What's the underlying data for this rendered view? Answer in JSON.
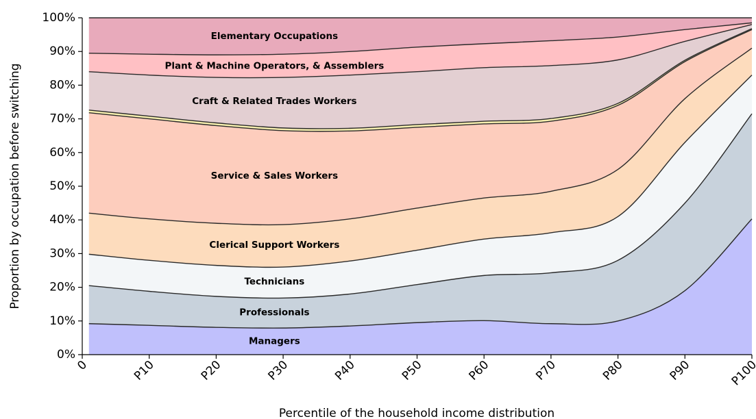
{
  "chart_data": {
    "type": "stackedarea",
    "xlabel": "Percentile of the household income distribution",
    "ylabel": "Proportion by occupation before switching",
    "x": [
      1,
      10,
      20,
      30,
      40,
      50,
      60,
      70,
      80,
      90,
      100
    ],
    "xlim": [
      0,
      100
    ],
    "xticks": [
      0,
      {
        "value": 10,
        "label": "P10"
      },
      {
        "value": 20,
        "label": "P20"
      },
      {
        "value": 30,
        "label": "P30"
      },
      {
        "value": 40,
        "label": "P40"
      },
      {
        "value": 50,
        "label": "P50"
      },
      {
        "value": 60,
        "label": "P60"
      },
      {
        "value": 70,
        "label": "P70"
      },
      {
        "value": 80,
        "label": "P80"
      },
      {
        "value": 90,
        "label": "P90"
      },
      {
        "value": 100,
        "label": "P100"
      }
    ],
    "ylim": [
      0,
      100
    ],
    "yticks": [
      {
        "value": 0,
        "label": "0%"
      },
      {
        "value": 10,
        "label": "10%"
      },
      {
        "value": 20,
        "label": "20%"
      },
      {
        "value": 30,
        "label": "30%"
      },
      {
        "value": 40,
        "label": "40%"
      },
      {
        "value": 50,
        "label": "50%"
      },
      {
        "value": 60,
        "label": "60%"
      },
      {
        "value": 70,
        "label": "70%"
      },
      {
        "value": 80,
        "label": "80%"
      },
      {
        "value": 90,
        "label": "90%"
      },
      {
        "value": 100,
        "label": "100%"
      }
    ],
    "series": [
      {
        "name": "Managers",
        "color": "#c0c0fc",
        "values": [
          9.2,
          8.7,
          8.1,
          7.9,
          8.5,
          9.5,
          10.1,
          9.2,
          10,
          19,
          40.3
        ]
      },
      {
        "name": "Professionals",
        "color": "#c8d2dc",
        "values": [
          11.3,
          10.1,
          9.2,
          8.9,
          9.5,
          11.3,
          13.4,
          15.1,
          18,
          26,
          31.2
        ]
      },
      {
        "name": "Technicians",
        "color": "#f3f6f8",
        "values": [
          9.3,
          9.2,
          9.2,
          9.2,
          9.8,
          10.2,
          10.8,
          11.9,
          13,
          18,
          11.5
        ]
      },
      {
        "name": "Clerical Support Workers",
        "color": "#fddcbd",
        "values": [
          12.2,
          12.3,
          12.5,
          12.6,
          12.5,
          12.5,
          12.2,
          12.3,
          14,
          13,
          8
        ]
      },
      {
        "name": "Service & Sales Workers",
        "color": "#fdcdbd",
        "values": [
          29.8,
          29.7,
          29,
          27.9,
          26.1,
          24,
          22,
          20.8,
          19,
          11,
          5.5
        ]
      },
      {
        "color": "#f8f0b0",
        "values": [
          0.8,
          0.8,
          0.8,
          0.8,
          0.8,
          0.8,
          0.8,
          0.8,
          0.6,
          0.4,
          0.3
        ]
      },
      {
        "name": "Craft & Related Trades Workers",
        "color": "#e3cfd2",
        "values": [
          11.4,
          12.2,
          13.5,
          15,
          15.8,
          15.7,
          15.9,
          15.7,
          12.9,
          5.6,
          1.2
        ]
      },
      {
        "name": "Plant & Machine Operators, & Assemblers",
        "color": "#ffc0c4",
        "values": [
          5.5,
          6.2,
          6.7,
          6.9,
          7,
          7.3,
          7.1,
          7.4,
          6.8,
          3.5,
          0.5
        ]
      },
      {
        "name": "Elementary Occupations",
        "color": "#e8aabb",
        "values": [
          10.5,
          10.8,
          11,
          10.8,
          10,
          8.7,
          7.7,
          6.8,
          5.7,
          3.5,
          1.5
        ]
      }
    ]
  }
}
